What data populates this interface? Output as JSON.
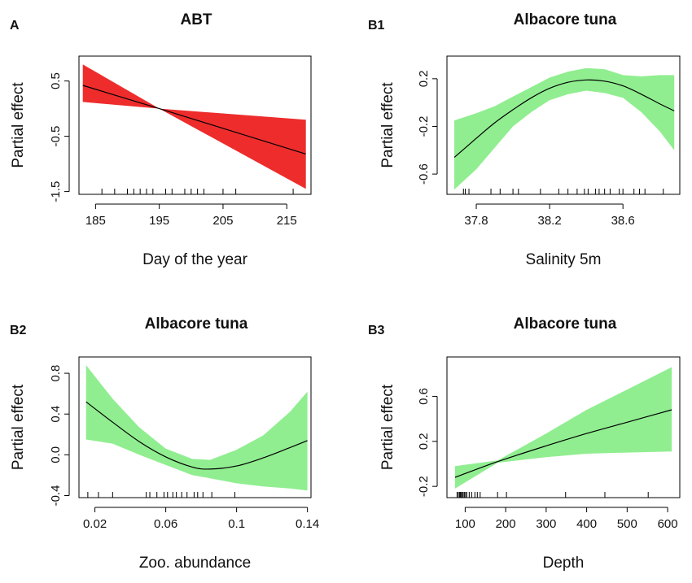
{
  "chart_data": [
    {
      "id": "A",
      "type": "area",
      "panel_label": "A",
      "title": "ABT",
      "xlabel": "Day of the year",
      "ylabel": "Partial effect",
      "xlim": [
        182.4,
        218.8
      ],
      "ylim": [
        -1.55,
        0.95
      ],
      "xticks": [
        185,
        195,
        205,
        215
      ],
      "yticks": [
        0.5,
        -0.5,
        -1.5
      ],
      "ytick_labels": [
        "0.5",
        "-0.5",
        "-1.5"
      ],
      "band_color": "#ee2c2c",
      "series": [
        {
          "x": [
            183,
            195,
            218
          ],
          "fit": [
            0.42,
            0.0,
            -0.82
          ],
          "upper": [
            0.8,
            0.0,
            -0.2
          ],
          "lower": [
            0.12,
            0.0,
            -1.45
          ]
        }
      ],
      "rug": [
        186,
        188,
        190,
        191,
        192,
        193,
        194,
        196,
        197,
        199,
        200,
        201,
        202,
        205,
        207,
        216
      ]
    },
    {
      "id": "B1",
      "type": "area",
      "panel_label": "B1",
      "title": "Albacore tuna",
      "xlabel": "Salinity 5m",
      "ylabel": "Partial effect",
      "xlim": [
        37.64,
        38.91
      ],
      "ylim": [
        -0.77,
        0.39
      ],
      "xticks": [
        37.8,
        38.2,
        38.6
      ],
      "yticks": [
        0.2,
        -0.2,
        -0.6
      ],
      "ytick_labels": [
        "0.2",
        "-0.2",
        "-0.6"
      ],
      "band_color": "#90ee90",
      "series": [
        {
          "x": [
            37.68,
            37.8,
            37.9,
            38.0,
            38.1,
            38.2,
            38.3,
            38.4,
            38.5,
            38.6,
            38.7,
            38.8,
            38.88
          ],
          "fit": [
            -0.46,
            -0.3,
            -0.17,
            -0.06,
            0.04,
            0.12,
            0.17,
            0.19,
            0.18,
            0.14,
            0.07,
            -0.01,
            -0.07
          ],
          "upper": [
            -0.15,
            -0.09,
            -0.03,
            0.05,
            0.13,
            0.21,
            0.26,
            0.29,
            0.28,
            0.23,
            0.22,
            0.23,
            0.23
          ],
          "lower": [
            -0.73,
            -0.56,
            -0.38,
            -0.2,
            -0.08,
            0.02,
            0.07,
            0.1,
            0.08,
            0.04,
            -0.08,
            -0.24,
            -0.4
          ]
        }
      ],
      "rug": [
        37.73,
        37.74,
        37.76,
        37.88,
        37.93,
        38.0,
        38.03,
        38.15,
        38.25,
        38.3,
        38.35,
        38.39,
        38.41,
        38.45,
        38.47,
        38.5,
        38.53,
        38.58,
        38.6,
        38.66,
        38.69,
        38.72,
        38.82
      ]
    },
    {
      "id": "B2",
      "type": "area",
      "panel_label": "B2",
      "title": "Albacore tuna",
      "xlabel": "Zoo. abundance",
      "ylabel": "Partial effect",
      "xlim": [
        0.011,
        0.142
      ],
      "ylim": [
        -0.42,
        0.96
      ],
      "xticks": [
        0.02,
        0.06,
        0.1,
        0.14
      ],
      "yticks": [
        0.8,
        0.4,
        0.0,
        -0.4
      ],
      "ytick_labels": [
        "0.8",
        "0.4",
        "0.0",
        "-0.4"
      ],
      "band_color": "#90ee90",
      "series": [
        {
          "x": [
            0.015,
            0.03,
            0.045,
            0.06,
            0.075,
            0.085,
            0.1,
            0.115,
            0.13,
            0.14
          ],
          "fit": [
            0.52,
            0.32,
            0.13,
            -0.02,
            -0.12,
            -0.14,
            -0.11,
            -0.03,
            0.07,
            0.14
          ],
          "upper": [
            0.88,
            0.55,
            0.27,
            0.06,
            -0.04,
            -0.05,
            0.05,
            0.19,
            0.42,
            0.62
          ],
          "lower": [
            0.15,
            0.11,
            0.0,
            -0.1,
            -0.2,
            -0.23,
            -0.28,
            -0.31,
            -0.33,
            -0.35
          ]
        }
      ],
      "rug": [
        0.016,
        0.022,
        0.03,
        0.049,
        0.051,
        0.055,
        0.059,
        0.061,
        0.064,
        0.066,
        0.069,
        0.072,
        0.076,
        0.078,
        0.081,
        0.086,
        0.099
      ]
    },
    {
      "id": "B3",
      "type": "area",
      "panel_label": "B3",
      "title": "Albacore tuna",
      "xlabel": "Depth",
      "ylabel": "Partial effect",
      "xlim": [
        55,
        630
      ],
      "ylim": [
        -0.3,
        0.95
      ],
      "xticks": [
        100,
        200,
        300,
        400,
        500,
        600
      ],
      "yticks": [
        0.6,
        0.2,
        -0.2
      ],
      "ytick_labels": [
        "0.6",
        "0.2",
        "-0.2"
      ],
      "band_color": "#90ee90",
      "series": [
        {
          "x": [
            75,
            180,
            300,
            400,
            500,
            610
          ],
          "fit": [
            -0.12,
            0.02,
            0.16,
            0.27,
            0.37,
            0.48
          ],
          "upper": [
            -0.02,
            0.03,
            0.27,
            0.48,
            0.66,
            0.86
          ],
          "lower": [
            -0.22,
            0.01,
            0.06,
            0.09,
            0.1,
            0.11
          ]
        }
      ],
      "rug": [
        80,
        83,
        86,
        88,
        90,
        93,
        95,
        98,
        101,
        104,
        110,
        116,
        124,
        130,
        137,
        180,
        202,
        348,
        445,
        552
      ]
    }
  ]
}
